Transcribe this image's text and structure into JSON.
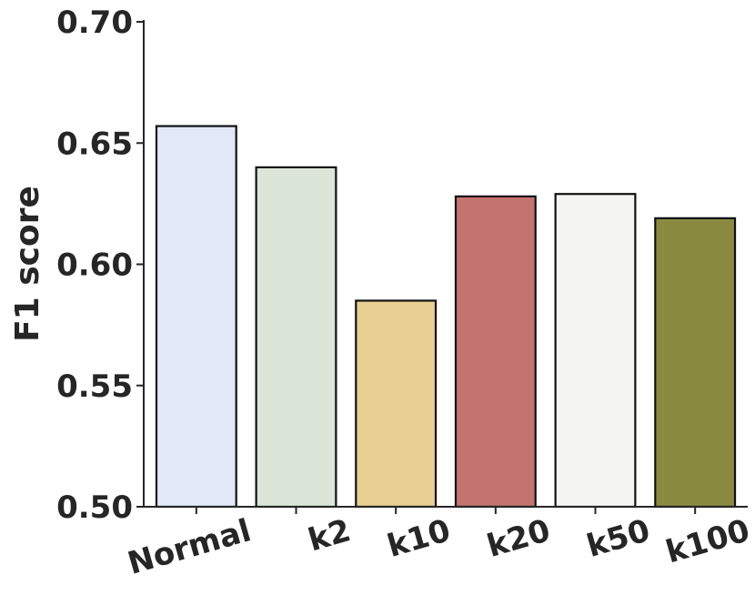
{
  "chart_data": {
    "type": "bar",
    "title": "",
    "xlabel": "",
    "ylabel": "F1 score",
    "categories": [
      "Normal",
      "k2",
      "k10",
      "k20",
      "k50",
      "k100"
    ],
    "values": [
      0.657,
      0.64,
      0.585,
      0.628,
      0.629,
      0.619
    ],
    "colors": [
      "#e1e8f7",
      "#dce6d8",
      "#eacf93",
      "#c57370",
      "#f4f4f2",
      "#8a8b40"
    ],
    "ylim": [
      0.5,
      0.7
    ],
    "yticks": [
      0.5,
      0.55,
      0.6,
      0.65,
      0.7
    ],
    "ytick_labels": [
      "0.50",
      "0.55",
      "0.60",
      "0.65",
      "0.70"
    ],
    "grid": false,
    "legend": "none"
  }
}
